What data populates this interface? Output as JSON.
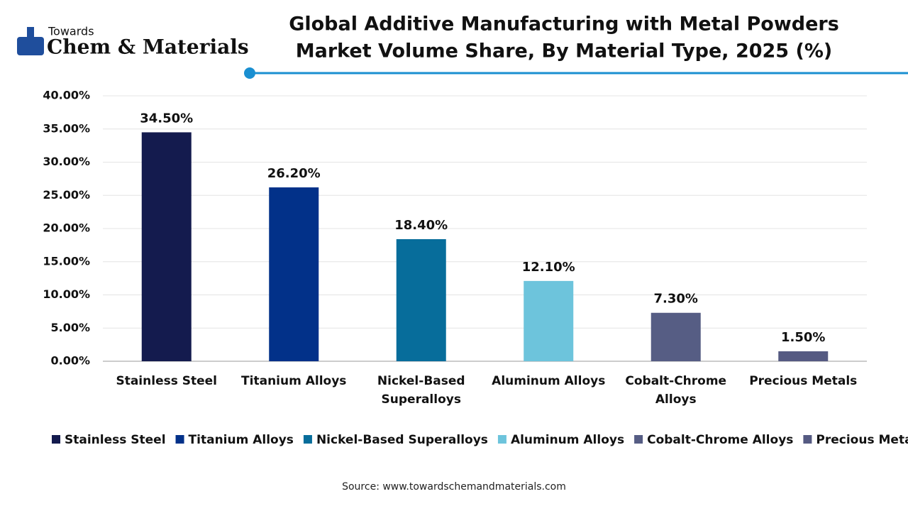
{
  "brand": {
    "top": "Towards",
    "name": "Chem & Materials"
  },
  "chart_data": {
    "type": "bar",
    "title": [
      "Global Additive Manufacturing with Metal Powders",
      "Market Volume Share, By Material Type, 2025 (%)"
    ],
    "categories": [
      "Stainless Steel",
      "Titanium Alloys",
      "Nickel-Based Superalloys",
      "Aluminum Alloys",
      "Cobalt-Chrome Alloys",
      "Precious Metals"
    ],
    "values": [
      34.5,
      26.2,
      18.4,
      12.1,
      7.3,
      1.5
    ],
    "value_labels": [
      "34.50%",
      "26.20%",
      "18.40%",
      "12.10%",
      "7.30%",
      "1.50%"
    ],
    "colors": [
      "#141b4e",
      "#023189",
      "#076d9b",
      "#6dc4dc",
      "#565d84",
      "#555a82"
    ],
    "ylim": [
      0,
      40
    ],
    "yticks": [
      {
        "value": 0,
        "label": "0.00%"
      },
      {
        "value": 5,
        "label": "5.00%"
      },
      {
        "value": 10,
        "label": "10.00%"
      },
      {
        "value": 15,
        "label": "15.00%"
      },
      {
        "value": 20,
        "label": "20.00%"
      },
      {
        "value": 25,
        "label": "25.00%"
      },
      {
        "value": 30,
        "label": "30.00%"
      },
      {
        "value": 35,
        "label": "35.00%"
      },
      {
        "value": 40,
        "label": "40.00%"
      }
    ],
    "grid": true,
    "legend": "bottom",
    "source": "Source: www.towardschemandmaterials.com"
  }
}
